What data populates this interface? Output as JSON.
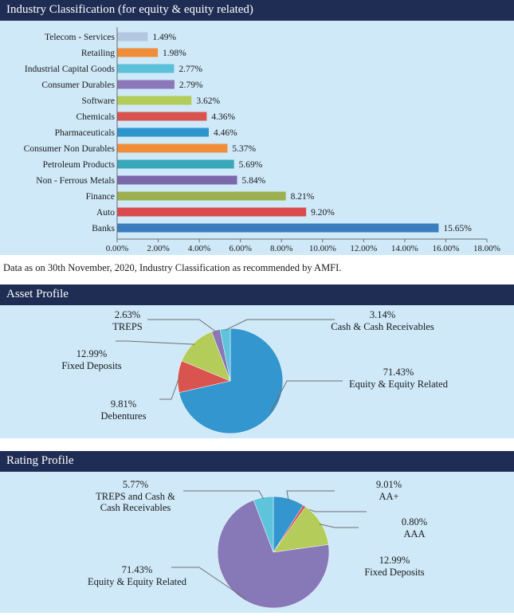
{
  "industry": {
    "title": "Industry Classification (for equity & equity related)",
    "note": "Data as on 30th November, 2020, Industry Classification as recommended by AMFI."
  },
  "asset": {
    "title": "Asset Profile"
  },
  "rating": {
    "title": "Rating Profile"
  },
  "chart_data": [
    {
      "type": "bar",
      "orientation": "horizontal",
      "categories": [
        "Telecom - Services",
        "Retailing",
        "Industrial Capital Goods",
        "Consumer Durables",
        "Software",
        "Chemicals",
        "Pharmaceuticals",
        "Consumer Non Durables",
        "Petroleum Products",
        "Non - Ferrous Metals",
        "Finance",
        "Auto",
        "Banks"
      ],
      "values": [
        1.49,
        1.98,
        2.77,
        2.79,
        3.62,
        4.36,
        4.46,
        5.37,
        5.69,
        5.84,
        8.21,
        9.2,
        15.65
      ],
      "labels": [
        "1.49%",
        "1.98%",
        "2.77%",
        "2.79%",
        "3.62%",
        "4.36%",
        "4.46%",
        "5.37%",
        "5.69%",
        "5.84%",
        "8.21%",
        "9.20%",
        "15.65%"
      ],
      "colors": [
        "#b3c8e0",
        "#ef8d3a",
        "#5bc0d8",
        "#8b78b8",
        "#b3cc5a",
        "#d9534f",
        "#2d94cc",
        "#ef8d3a",
        "#38a8b8",
        "#7a68aa",
        "#9cb050",
        "#d9494d",
        "#3a7ec0"
      ],
      "xlim": [
        0,
        18
      ],
      "xticks": [
        "0.00%",
        "2.00%",
        "4.00%",
        "6.00%",
        "8.00%",
        "10.00%",
        "12.00%",
        "14.00%",
        "16.00%",
        "18.00%"
      ],
      "grid": false
    },
    {
      "type": "pie",
      "title": "Asset Profile",
      "slices": [
        {
          "name": "Equity & Equity Related",
          "value": 71.43,
          "label": "71.43%",
          "color": "#3396cf"
        },
        {
          "name": "Debentures",
          "value": 9.81,
          "label": "9.81%",
          "color": "#d9534f"
        },
        {
          "name": "Fixed Deposits",
          "value": 12.99,
          "label": "12.99%",
          "color": "#b3cc5a"
        },
        {
          "name": "TREPS",
          "value": 2.63,
          "label": "2.63%",
          "color": "#8778b8"
        },
        {
          "name": "Cash & Cash Receivables",
          "value": 3.14,
          "label": "3.14%",
          "color": "#5ec4dc"
        }
      ]
    },
    {
      "type": "pie",
      "title": "Rating Profile",
      "slices": [
        {
          "name": "AA+",
          "value": 9.01,
          "label": "9.01%",
          "color": "#3396cf"
        },
        {
          "name": "AAA",
          "value": 0.8,
          "label": "0.80%",
          "color": "#d9534f"
        },
        {
          "name": "Fixed Deposits",
          "value": 12.99,
          "label": "12.99%",
          "color": "#b3cc5a"
        },
        {
          "name": "Equity & Equity Related",
          "value": 71.43,
          "label": "71.43%",
          "color": "#8778b8"
        },
        {
          "name": "TREPS and Cash & Cash Receivables",
          "value": 5.77,
          "label": "5.77%",
          "color": "#5ec4dc"
        }
      ]
    }
  ]
}
